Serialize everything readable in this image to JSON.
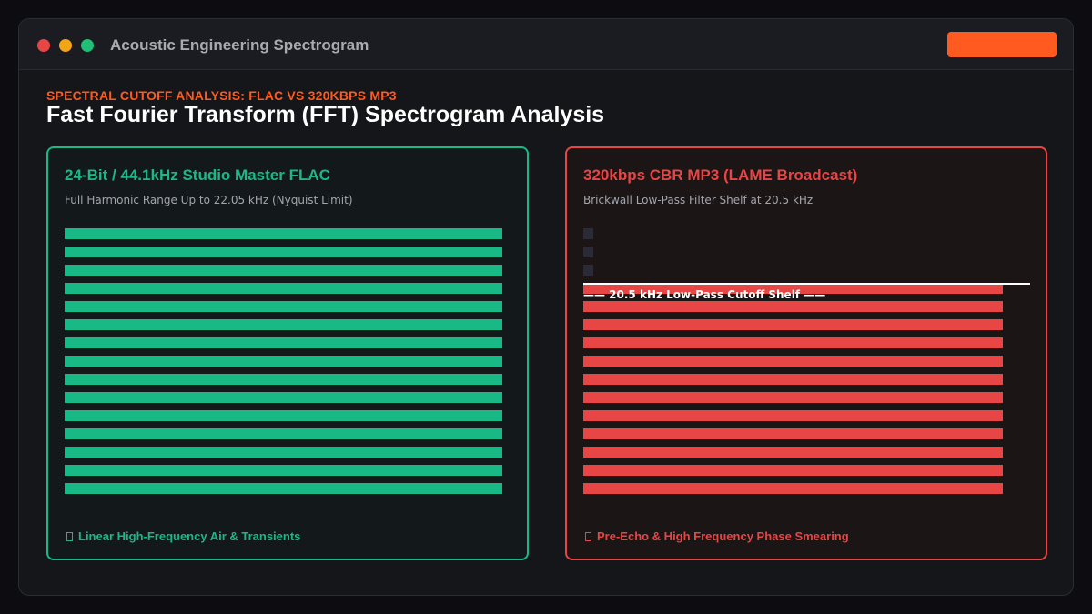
{
  "window": {
    "title": "Acoustic Engineering Spectrogram",
    "accent_color": "#ff5a1f"
  },
  "header": {
    "eyebrow": "SPECTRAL CUTOFF ANALYSIS: FLAC VS 320KBPS MP3",
    "title": "Fast Fourier Transform (FFT) Spectrogram Analysis"
  },
  "panels": {
    "flac": {
      "title": "24-Bit / 44.1kHz Studio Master FLAC",
      "subtitle": "Full Harmonic Range Up to 22.05 kHz (Nyquist Limit)",
      "footer": "Linear High-Frequency Air & Transients",
      "footer_icon": "box-glyph-icon",
      "color": "#19b985",
      "bands": [
        1,
        1,
        1,
        1,
        1,
        1,
        1,
        1,
        1,
        1,
        1,
        1,
        1,
        1,
        1
      ]
    },
    "mp3": {
      "title": "320kbps CBR MP3 (LAME Broadcast)",
      "subtitle": "Brickwall Low-Pass Filter Shelf at 20.5 kHz",
      "cutoff_label": "—— 20.5 kHz Low-Pass Cutoff Shelf ——",
      "footer": "Pre-Echo & High Frequency Phase Smearing",
      "footer_icon": "box-glyph-icon",
      "color": "#e84545",
      "bands": [
        0,
        0,
        0,
        1,
        1,
        1,
        1,
        1,
        1,
        1,
        1,
        1,
        1,
        1,
        1
      ]
    }
  }
}
